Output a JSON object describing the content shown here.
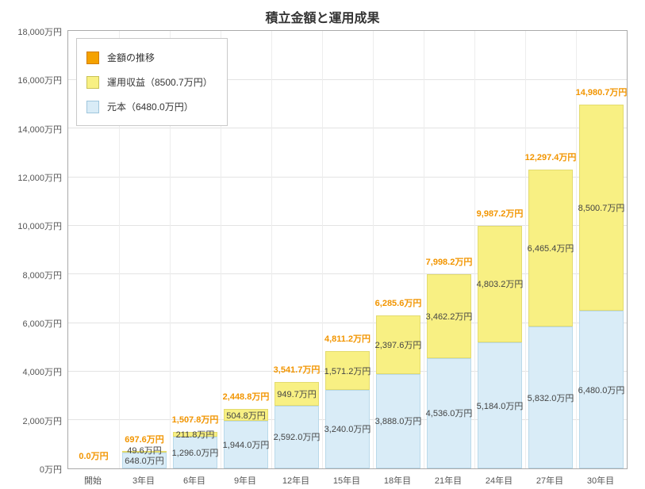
{
  "title": "積立金額と運用成果",
  "chart_data": {
    "type": "bar",
    "stacked": true,
    "grid": true,
    "legend_position": "top-left-inside",
    "categories": [
      "開始",
      "3年目",
      "6年目",
      "9年目",
      "12年目",
      "15年目",
      "18年目",
      "21年目",
      "24年目",
      "27年目",
      "30年目"
    ],
    "series": [
      {
        "name": "元本",
        "color": "#d9ecf7",
        "border": "#b9d9ea",
        "values": [
          0,
          648.0,
          1296.0,
          1944.0,
          2592.0,
          3240.0,
          3888.0,
          4536.0,
          5184.0,
          5832.0,
          6480.0
        ],
        "labels": [
          "",
          "648.0万円",
          "1,296.0万円",
          "1,944.0万円",
          "2,592.0万円",
          "3,240.0万円",
          "3,888.0万円",
          "4,536.0万円",
          "5,184.0万円",
          "5,832.0万円",
          "6,480.0万円"
        ]
      },
      {
        "name": "運用収益",
        "color": "#f8f083",
        "border": "#e3db6e",
        "values": [
          0,
          49.6,
          211.8,
          504.8,
          949.7,
          1571.2,
          2397.6,
          3462.2,
          4803.2,
          6465.4,
          8500.7
        ],
        "labels": [
          "",
          "49.6万円",
          "211.8万円",
          "504.8万円",
          "949.7万円",
          "1,571.2万円",
          "2,397.6万円",
          "3,462.2万円",
          "4,803.2万円",
          "6,465.4万円",
          "8,500.7万円"
        ]
      }
    ],
    "totals": [
      0.0,
      697.6,
      1507.8,
      2448.8,
      3541.7,
      4811.2,
      6285.6,
      7998.2,
      9987.2,
      12297.4,
      14980.7
    ],
    "total_labels": [
      "0.0万円",
      "697.6万円",
      "1,507.8万円",
      "2,448.8万円",
      "3,541.7万円",
      "4,811.2万円",
      "6,285.6万円",
      "7,998.2万円",
      "9,987.2万円",
      "12,297.4万円",
      "14,980.7万円"
    ],
    "total_label_color": "#f29500",
    "segment_label_color": "#444444",
    "ylim": [
      0,
      18000
    ],
    "y_tick_step": 2000,
    "y_tick_labels": [
      "0万円",
      "2,000万円",
      "4,000万円",
      "6,000万円",
      "8,000万円",
      "10,000万円",
      "12,000万円",
      "14,000万円",
      "16,000万円",
      "18,000万円"
    ],
    "xlabel": "",
    "ylabel": "",
    "legend": [
      {
        "label": "金額の推移",
        "color": "#f5a200",
        "border": "#d17d00"
      },
      {
        "label": "運用収益（8500.7万円）",
        "color": "#f8f083",
        "border": "#c9c258"
      },
      {
        "label": "元本（6480.0万円）",
        "color": "#d9ecf7",
        "border": "#9fc6dd"
      }
    ]
  }
}
